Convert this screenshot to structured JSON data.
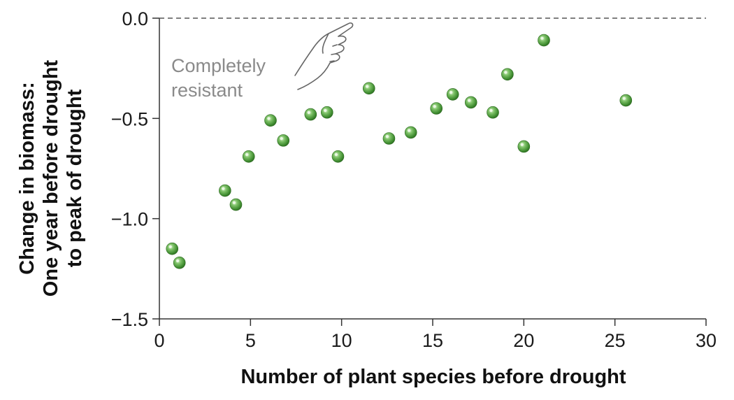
{
  "chart_data": {
    "type": "scatter",
    "title": "",
    "xlabel": "Number of plant species before drought",
    "ylabel_lines": [
      "Change in biomass:",
      "One year before drought",
      "to peak of drought"
    ],
    "xlim": [
      0,
      30
    ],
    "ylim": [
      -1.5,
      0.0
    ],
    "xticks": [
      0,
      5,
      10,
      15,
      20,
      25,
      30
    ],
    "xtick_labels": [
      "0",
      "5",
      "10",
      "15",
      "20",
      "25",
      "30"
    ],
    "yticks": [
      0.0,
      -0.5,
      -1.0,
      -1.5
    ],
    "ytick_labels": [
      "0.0",
      "−0.5",
      "−1.0",
      "−1.5"
    ],
    "grid": false,
    "reference_line": {
      "y": 0.0,
      "style": "dashed"
    },
    "annotation": {
      "lines": [
        "Completely",
        "resistant"
      ],
      "icon": "pointing-hand-icon"
    },
    "marker_color": "#4a9a3c",
    "points": [
      {
        "x": 0.7,
        "y": -1.15
      },
      {
        "x": 1.1,
        "y": -1.22
      },
      {
        "x": 3.6,
        "y": -0.86
      },
      {
        "x": 4.2,
        "y": -0.93
      },
      {
        "x": 4.9,
        "y": -0.69
      },
      {
        "x": 6.1,
        "y": -0.51
      },
      {
        "x": 6.8,
        "y": -0.61
      },
      {
        "x": 8.3,
        "y": -0.48
      },
      {
        "x": 9.2,
        "y": -0.47
      },
      {
        "x": 9.8,
        "y": -0.69
      },
      {
        "x": 11.5,
        "y": -0.35
      },
      {
        "x": 12.6,
        "y": -0.6
      },
      {
        "x": 13.8,
        "y": -0.57
      },
      {
        "x": 15.2,
        "y": -0.45
      },
      {
        "x": 16.1,
        "y": -0.38
      },
      {
        "x": 17.1,
        "y": -0.42
      },
      {
        "x": 18.3,
        "y": -0.47
      },
      {
        "x": 19.1,
        "y": -0.28
      },
      {
        "x": 20.0,
        "y": -0.64
      },
      {
        "x": 21.1,
        "y": -0.11
      },
      {
        "x": 25.6,
        "y": -0.41
      }
    ]
  }
}
